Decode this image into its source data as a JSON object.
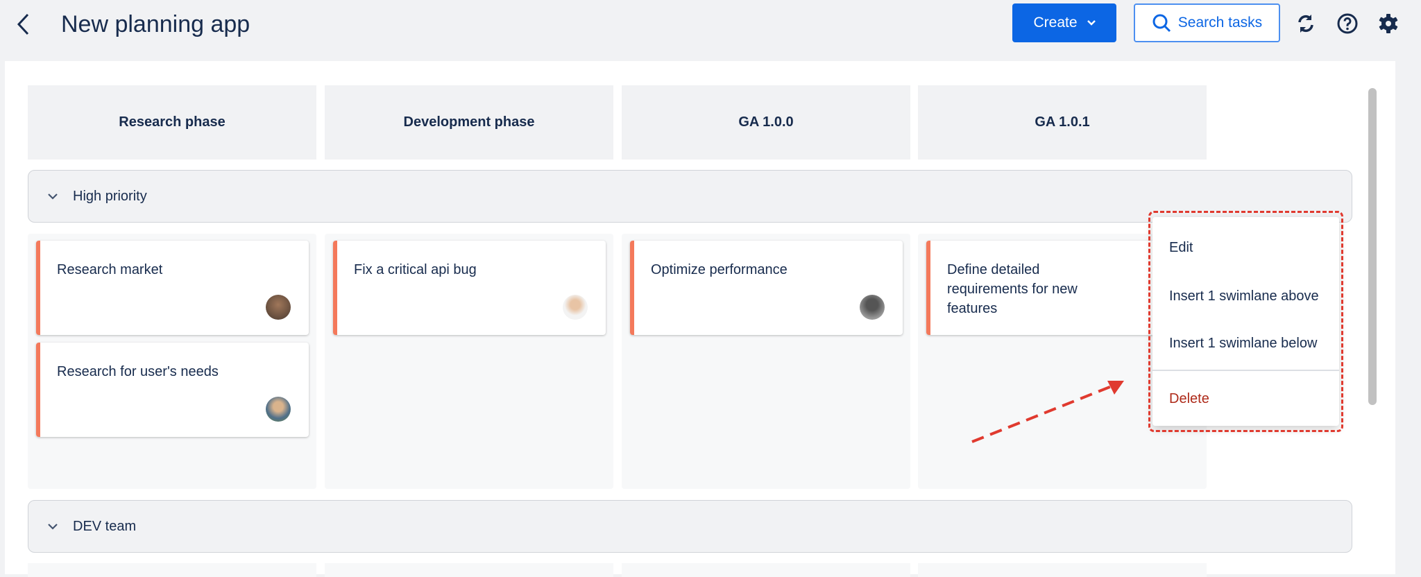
{
  "header": {
    "title": "New planning app",
    "create_label": "Create",
    "search_label": "Search tasks"
  },
  "columns": [
    "Research phase",
    "Development phase",
    "GA 1.0.0",
    "GA 1.0.1"
  ],
  "swimlanes": [
    {
      "label": "High priority",
      "cards": [
        [
          "Research market",
          "Research for user's needs"
        ],
        [
          "Fix a critical api bug"
        ],
        [
          "Optimize performance"
        ],
        [
          "Define detailed requirements for new features"
        ]
      ]
    },
    {
      "label": "DEV team"
    }
  ],
  "context_menu": {
    "items": [
      "Edit",
      "Insert 1 swimlane above",
      "Insert 1 swimlane below"
    ],
    "delete": "Delete"
  },
  "colors": {
    "accent": "#0c66e4",
    "card_stripe": "#f4795b",
    "delete": "#ae2a19",
    "annotation": "#e03a2f"
  }
}
